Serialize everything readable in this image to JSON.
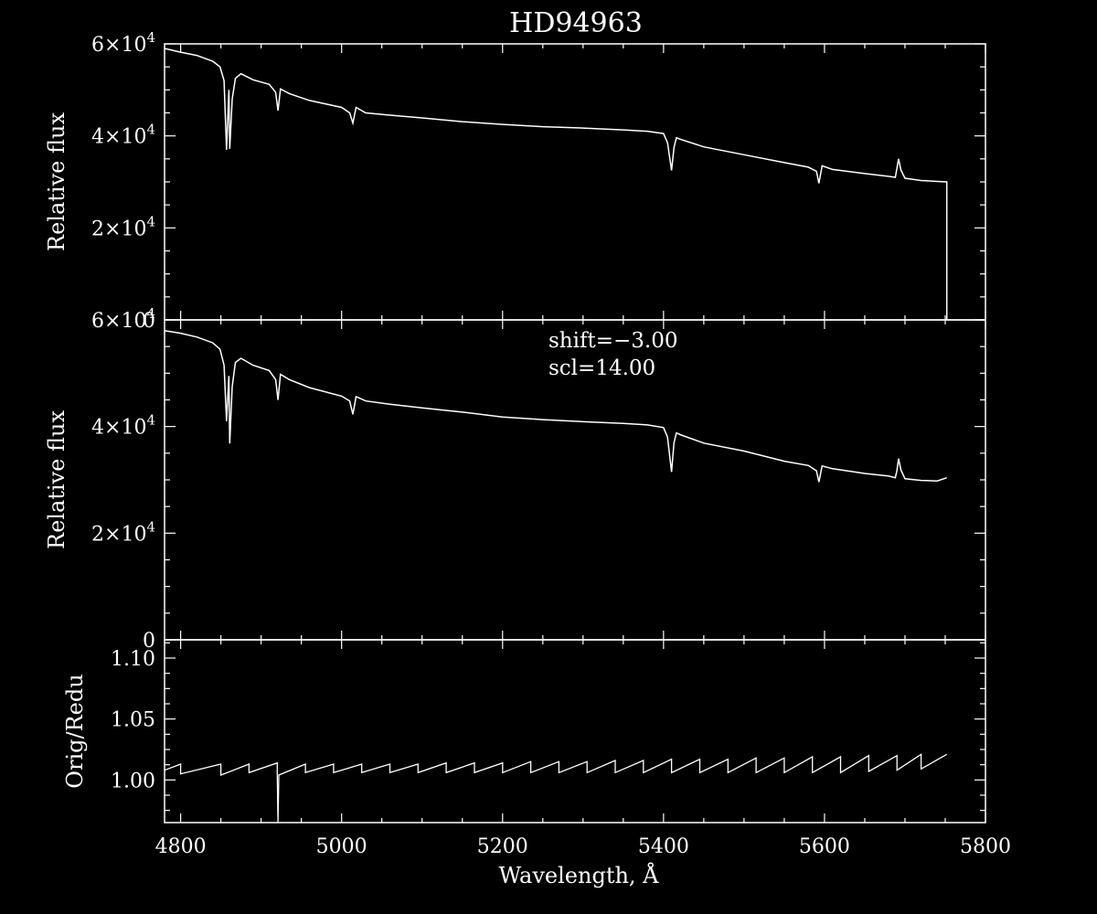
{
  "chart_data": {
    "type": "line",
    "title": "HD94963",
    "xlabel": "Wavelength, Å",
    "xlim": [
      4780,
      5800
    ],
    "x_ticks": [
      "4800",
      "5000",
      "5200",
      "5400",
      "5600",
      "5800"
    ],
    "colors": {
      "background": "#000000",
      "foreground": "#ffffff"
    },
    "panels": [
      {
        "id": "top",
        "ylabel": "Relative flux",
        "ylim": [
          0,
          60000
        ],
        "y_ticks": [
          {
            "value": 0,
            "mantissa": "0",
            "exponent": ""
          },
          {
            "value": 20000,
            "mantissa": "2×10",
            "exponent": "4"
          },
          {
            "value": 40000,
            "mantissa": "4×10",
            "exponent": "4"
          },
          {
            "value": 60000,
            "mantissa": "6×10",
            "exponent": "4"
          }
        ],
        "series": [
          {
            "x": [
              4780,
              4800,
              4820,
              4840,
              4849,
              4854,
              4857,
              4860,
              4861,
              4864,
              4868,
              4875,
              4890,
              4910,
              4918,
              4921,
              4924,
              4935,
              4960,
              5000,
              5010,
              5014,
              5018,
              5030,
              5060,
              5100,
              5150,
              5200,
              5250,
              5300,
              5350,
              5380,
              5400,
              5405,
              5410,
              5413,
              5416,
              5422,
              5450,
              5500,
              5550,
              5580,
              5590,
              5593,
              5597,
              5610,
              5650,
              5680,
              5688,
              5690,
              5692,
              5695,
              5700,
              5720,
              5740,
              5752
            ],
            "y": [
              59000,
              58200,
              57500,
              56200,
              55000,
              52000,
              37000,
              50000,
              37200,
              48000,
              52500,
              53500,
              52200,
              51200,
              49500,
              45500,
              50200,
              49200,
              47700,
              46200,
              45000,
              42800,
              46200,
              45000,
              44500,
              43900,
              43100,
              42500,
              42000,
              41700,
              41300,
              41000,
              40500,
              38500,
              32500,
              37500,
              39600,
              39200,
              37600,
              35900,
              34200,
              33200,
              32300,
              29700,
              33500,
              32700,
              31800,
              31200,
              31000,
              33000,
              35000,
              32500,
              30800,
              30300,
              30100,
              30000
            ]
          }
        ]
      },
      {
        "id": "middle",
        "ylabel": "Relative flux",
        "ylim": [
          0,
          60000
        ],
        "y_ticks": [
          {
            "value": 0,
            "mantissa": "0",
            "exponent": ""
          },
          {
            "value": 20000,
            "mantissa": "2×10",
            "exponent": "4"
          },
          {
            "value": 40000,
            "mantissa": "4×10",
            "exponent": "4"
          },
          {
            "value": 60000,
            "mantissa": "6×10",
            "exponent": "4"
          }
        ],
        "annotations": [
          "shift=−3.00",
          "scl=14.00"
        ],
        "series": [
          {
            "x": [
              4780,
              4800,
              4820,
              4840,
              4849,
              4854,
              4857,
              4860,
              4861,
              4864,
              4868,
              4875,
              4890,
              4910,
              4918,
              4921,
              4924,
              4935,
              4960,
              5000,
              5010,
              5014,
              5018,
              5030,
              5060,
              5100,
              5150,
              5200,
              5250,
              5300,
              5350,
              5380,
              5400,
              5405,
              5410,
              5413,
              5416,
              5422,
              5450,
              5500,
              5550,
              5580,
              5590,
              5593,
              5597,
              5610,
              5650,
              5680,
              5688,
              5690,
              5692,
              5695,
              5700,
              5720,
              5740,
              5752
            ],
            "y": [
              58000,
              57500,
              56800,
              55700,
              54500,
              51500,
              41000,
              49500,
              36800,
              47500,
              52000,
              52800,
              51500,
              50500,
              48800,
              45000,
              49800,
              48800,
              47300,
              45700,
              44800,
              42300,
              45600,
              44800,
              44200,
              43500,
              42700,
              41800,
              41300,
              40900,
              40600,
              40300,
              39800,
              38000,
              31500,
              37000,
              38800,
              38400,
              36900,
              35400,
              33500,
              32700,
              31700,
              29600,
              32600,
              32100,
              31200,
              30700,
              30400,
              31800,
              34000,
              31800,
              30200,
              29900,
              29800,
              30400
            ]
          }
        ]
      },
      {
        "id": "bottom",
        "ylabel": "Orig/Redu",
        "ylim": [
          0.965,
          1.115
        ],
        "y_ticks": [
          {
            "value": 1.0,
            "mantissa": "1.00",
            "exponent": ""
          },
          {
            "value": 1.05,
            "mantissa": "1.05",
            "exponent": ""
          },
          {
            "value": 1.1,
            "mantissa": "1.10",
            "exponent": ""
          }
        ],
        "series": [
          {
            "x": [
              4780,
              4800,
              4800,
              4850,
              4850,
              4885,
              4885,
              4920,
              4920,
              4921,
              4922,
              4955,
              4955,
              4990,
              4990,
              5025,
              5025,
              5060,
              5060,
              5095,
              5095,
              5130,
              5130,
              5165,
              5165,
              5200,
              5200,
              5235,
              5235,
              5270,
              5270,
              5305,
              5305,
              5340,
              5340,
              5375,
              5375,
              5410,
              5410,
              5445,
              5445,
              5480,
              5480,
              5515,
              5515,
              5550,
              5550,
              5585,
              5585,
              5620,
              5620,
              5655,
              5655,
              5690,
              5690,
              5720,
              5720,
              5752
            ],
            "y": [
              1.008,
              1.013,
              1.005,
              1.013,
              1.004,
              1.013,
              1.006,
              1.014,
              1.004,
              0.962,
              1.004,
              1.013,
              1.006,
              1.013,
              1.006,
              1.013,
              1.006,
              1.013,
              1.006,
              1.013,
              1.006,
              1.014,
              1.006,
              1.014,
              1.006,
              1.014,
              1.006,
              1.015,
              1.006,
              1.015,
              1.006,
              1.015,
              1.006,
              1.016,
              1.006,
              1.016,
              1.006,
              1.017,
              1.006,
              1.017,
              1.006,
              1.017,
              1.006,
              1.018,
              1.006,
              1.018,
              1.006,
              1.019,
              1.006,
              1.019,
              1.006,
              1.02,
              1.007,
              1.02,
              1.008,
              1.021,
              1.009,
              1.021
            ]
          }
        ]
      }
    ]
  }
}
